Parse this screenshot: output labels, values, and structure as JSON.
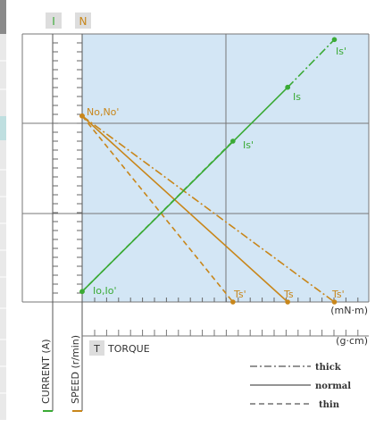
{
  "header": {
    "current_tab_label": "I",
    "speed_tab_label": "N"
  },
  "axes": {
    "current_axis_label": "CURRENT (A)",
    "speed_axis_label": "SPEED (r/min)",
    "torque_badge": "T",
    "torque_label": "TORQUE",
    "torque_unit_primary": "(mN·m)",
    "torque_unit_secondary": "(g·cm)"
  },
  "legend": {
    "thick_label": "thick",
    "normal_label": "normal",
    "thin_label": "thin"
  },
  "colors": {
    "current": "#3aaa35",
    "speed": "#c8861a",
    "plot_bg": "#d3e6f5",
    "grid": "#777777",
    "legend_line": "#555555"
  },
  "chart_data": {
    "type": "line",
    "xlabel": "TORQUE",
    "xlim": [
      0,
      1
    ],
    "ylim": [
      0,
      1
    ],
    "point_labels": {
      "no_load": "No,No'",
      "no_load_current": "Io,Io'",
      "stall_torque_thin": "Ts'",
      "stall_torque_normal": "Ts",
      "stall_torque_thick": "Ts'",
      "stall_current_normal": "Is",
      "stall_current_thick": "Is'",
      "stall_current_thin": "Is'"
    },
    "series": [
      {
        "name": "thick",
        "kind": "speed",
        "style": "dashdot",
        "x": [
          0,
          0.88
        ],
        "y": [
          0.694,
          0
        ]
      },
      {
        "name": "normal",
        "kind": "speed",
        "style": "solid",
        "x": [
          0,
          0.717
        ],
        "y": [
          0.694,
          0
        ]
      },
      {
        "name": "thin",
        "kind": "speed",
        "style": "dashed",
        "x": [
          0,
          0.526
        ],
        "y": [
          0.694,
          0
        ]
      },
      {
        "name": "normal",
        "kind": "current",
        "style": "solid",
        "x": [
          0,
          0.717
        ],
        "y": [
          0.039,
          0.801
        ]
      },
      {
        "name": "thick",
        "kind": "current",
        "style": "dashdot",
        "x": [
          0.717,
          0.88
        ],
        "y": [
          0.801,
          0.979
        ]
      },
      {
        "name": "thin",
        "kind": "current",
        "style": "dashed",
        "x": [
          0,
          0.526
        ],
        "y": [
          0.039,
          0.6
        ]
      }
    ]
  }
}
